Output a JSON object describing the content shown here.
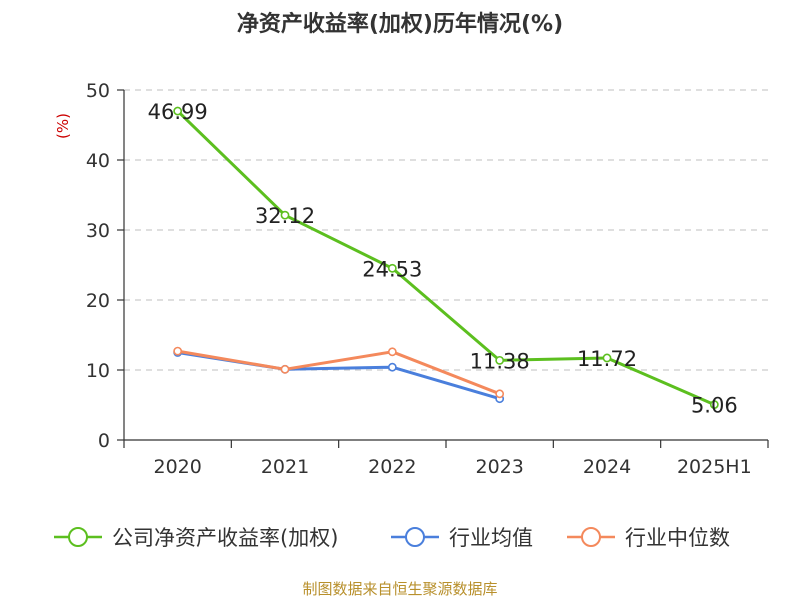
{
  "title": "净资产收益率(加权)历年情况(%)",
  "source": "制图数据来自恒生聚源数据库",
  "colors": {
    "company": "#5cbf1f",
    "industry_avg": "#4a7fdc",
    "industry_median": "#f4895c",
    "grid": "#cccccc",
    "axis": "#333333"
  },
  "chart_data": {
    "type": "line",
    "title": "净资产收益率(加权)历年情况(%)",
    "ylabel": "(%)",
    "xlabel": "",
    "categories": [
      "2020",
      "2021",
      "2022",
      "2023",
      "2024",
      "2025H1"
    ],
    "ylim": [
      0,
      50
    ],
    "yticks": [
      0,
      10,
      20,
      30,
      40,
      50
    ],
    "grid": "horizontal dashed",
    "legend_position": "bottom",
    "series": [
      {
        "name": "公司净资产收益率(加权)",
        "color": "#5cbf1f",
        "values": [
          46.99,
          32.12,
          24.53,
          11.38,
          11.72,
          5.06
        ],
        "labels": [
          "46.99",
          "32.12",
          "24.53",
          "11.38",
          "11.72",
          "5.06"
        ]
      },
      {
        "name": "行业均值",
        "color": "#4a7fdc",
        "values": [
          12.5,
          10.1,
          10.4,
          5.9,
          null,
          null
        ]
      },
      {
        "name": "行业中位数",
        "color": "#f4895c",
        "values": [
          12.7,
          10.1,
          12.6,
          6.6,
          null,
          null
        ]
      }
    ]
  }
}
